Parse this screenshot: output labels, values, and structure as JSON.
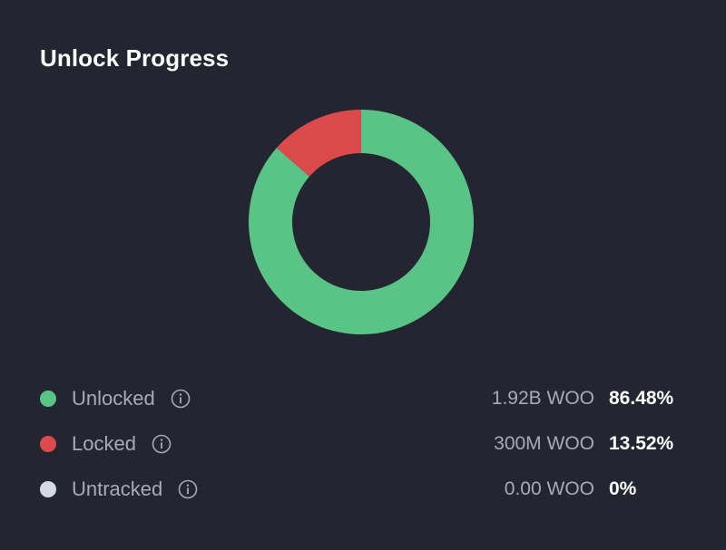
{
  "title": "Unlock Progress",
  "colors": {
    "background": "#232530",
    "unlocked": "#5ac487",
    "locked": "#db4a4a",
    "untracked": "#d5d9e3",
    "muted_text": "#a7abb8"
  },
  "chart_data": {
    "type": "pie",
    "donut": true,
    "title": "Unlock Progress",
    "legend": "bottom",
    "unit": "%",
    "series": [
      {
        "name": "Unlocked",
        "amount": "1.92B WOO",
        "percent_label": "86.48%",
        "value": 86.48,
        "color": "#5ac487"
      },
      {
        "name": "Locked",
        "amount": "300M WOO",
        "percent_label": "13.52%",
        "value": 13.52,
        "color": "#db4a4a"
      },
      {
        "name": "Untracked",
        "amount": "0.00 WOO",
        "percent_label": "0%",
        "value": 0,
        "color": "#d5d9e3"
      }
    ]
  }
}
